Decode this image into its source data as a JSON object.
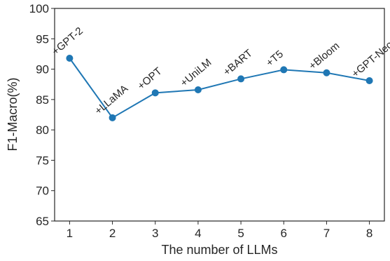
{
  "chart_data": {
    "type": "line",
    "title": "",
    "xlabel": "The number of LLMs",
    "ylabel": "F1-Macro(%)",
    "x": [
      1,
      2,
      3,
      4,
      5,
      6,
      7,
      8
    ],
    "xlim": [
      0.65,
      8.35
    ],
    "ylim": [
      65,
      100
    ],
    "yticks": [
      65,
      70,
      75,
      80,
      85,
      90,
      95,
      100
    ],
    "xticks": [
      1,
      2,
      3,
      4,
      5,
      6,
      7,
      8
    ],
    "grid": false,
    "series": [
      {
        "values": [
          91.8,
          82.0,
          86.1,
          86.6,
          88.4,
          89.9,
          89.4,
          88.1
        ],
        "point_labels": [
          "+GPT-2",
          "+LLaMA",
          "+OPT",
          "+UniLM",
          "+BART",
          "+T5",
          "+Bloom",
          "+GPT-Neo"
        ],
        "color": "#1f77b4"
      }
    ]
  }
}
